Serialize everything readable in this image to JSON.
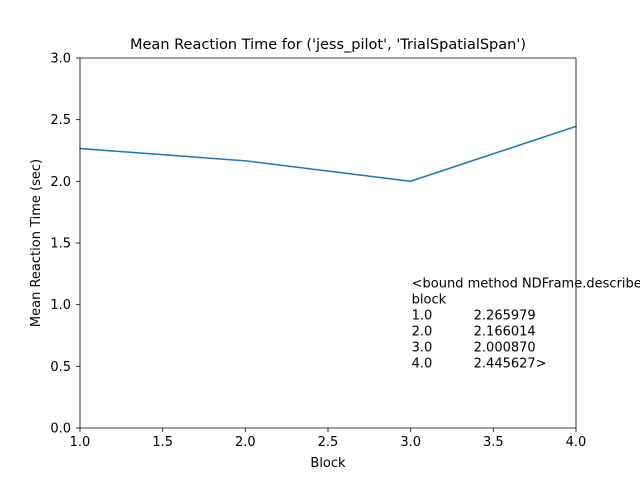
{
  "chart_data": {
    "type": "line",
    "title": "Mean Reaction Time for ('jess_pilot', 'TrialSpatialSpan')",
    "xlabel": "Block",
    "ylabel": "Mean Reaction Time (sec)",
    "xlim": [
      1.0,
      4.0
    ],
    "ylim": [
      0.0,
      3.0
    ],
    "x_ticks": [
      1.0,
      1.5,
      2.0,
      2.5,
      3.0,
      3.5,
      4.0
    ],
    "x_tick_labels": [
      "1.0",
      "1.5",
      "2.0",
      "2.5",
      "3.0",
      "3.5",
      "4.0"
    ],
    "y_ticks": [
      0.0,
      0.5,
      1.0,
      1.5,
      2.0,
      2.5,
      3.0
    ],
    "y_tick_labels": [
      "0.0",
      "0.5",
      "1.0",
      "1.5",
      "2.0",
      "2.5",
      "3.0"
    ],
    "grid": false,
    "series": [
      {
        "color": "#1f77b4",
        "x": [
          1.0,
          2.0,
          3.0,
          4.0
        ],
        "y": [
          2.265979,
          2.166014,
          2.00087,
          2.445627
        ]
      }
    ],
    "annotation": {
      "anchor": [
        3.0,
        1.2
      ],
      "lines": [
        "<bound method NDFrame.describe",
        "block",
        "1.0          2.265979",
        "2.0          2.166014",
        "3.0          2.000870",
        "4.0          2.445627>"
      ]
    }
  }
}
